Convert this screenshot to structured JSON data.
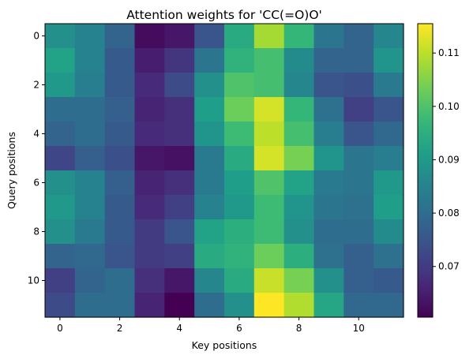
{
  "chart_data": {
    "type": "heatmap",
    "title": "Attention weights for 'CC(=O)O'",
    "xlabel": "Key positions",
    "ylabel": "Query positions",
    "x_ticks": [
      0,
      2,
      4,
      6,
      8,
      10
    ],
    "y_ticks": [
      0,
      2,
      4,
      6,
      8,
      10
    ],
    "colorbar": {
      "colormap": "viridis",
      "range": [
        0.0605,
        0.1155
      ],
      "ticks": [
        0.07,
        0.08,
        0.09,
        0.1,
        0.11
      ],
      "tick_labels": [
        "0.07",
        "0.08",
        "0.09",
        "0.10",
        "0.11"
      ]
    },
    "values": [
      [
        0.088,
        0.085,
        0.078,
        0.062,
        0.064,
        0.075,
        0.094,
        0.108,
        0.097,
        0.082,
        0.078,
        0.086
      ],
      [
        0.092,
        0.085,
        0.076,
        0.065,
        0.069,
        0.082,
        0.096,
        0.099,
        0.087,
        0.078,
        0.078,
        0.089
      ],
      [
        0.09,
        0.084,
        0.076,
        0.067,
        0.073,
        0.088,
        0.1,
        0.099,
        0.086,
        0.075,
        0.074,
        0.083
      ],
      [
        0.08,
        0.08,
        0.077,
        0.066,
        0.068,
        0.091,
        0.103,
        0.112,
        0.097,
        0.081,
        0.071,
        0.075
      ],
      [
        0.078,
        0.08,
        0.076,
        0.067,
        0.068,
        0.089,
        0.098,
        0.11,
        0.099,
        0.084,
        0.075,
        0.079
      ],
      [
        0.072,
        0.077,
        0.074,
        0.064,
        0.063,
        0.083,
        0.094,
        0.112,
        0.104,
        0.089,
        0.082,
        0.084
      ],
      [
        0.088,
        0.085,
        0.077,
        0.066,
        0.068,
        0.083,
        0.091,
        0.1,
        0.092,
        0.083,
        0.082,
        0.09
      ],
      [
        0.09,
        0.085,
        0.076,
        0.067,
        0.071,
        0.085,
        0.09,
        0.098,
        0.089,
        0.082,
        0.081,
        0.091
      ],
      [
        0.088,
        0.083,
        0.076,
        0.07,
        0.075,
        0.092,
        0.095,
        0.098,
        0.088,
        0.08,
        0.08,
        0.087
      ],
      [
        0.078,
        0.079,
        0.075,
        0.07,
        0.071,
        0.094,
        0.096,
        0.103,
        0.095,
        0.081,
        0.077,
        0.081
      ],
      [
        0.071,
        0.078,
        0.08,
        0.068,
        0.064,
        0.086,
        0.094,
        0.111,
        0.104,
        0.088,
        0.077,
        0.076
      ],
      [
        0.073,
        0.08,
        0.08,
        0.066,
        0.0605,
        0.08,
        0.088,
        0.1155,
        0.109,
        0.093,
        0.079,
        0.079
      ]
    ]
  }
}
